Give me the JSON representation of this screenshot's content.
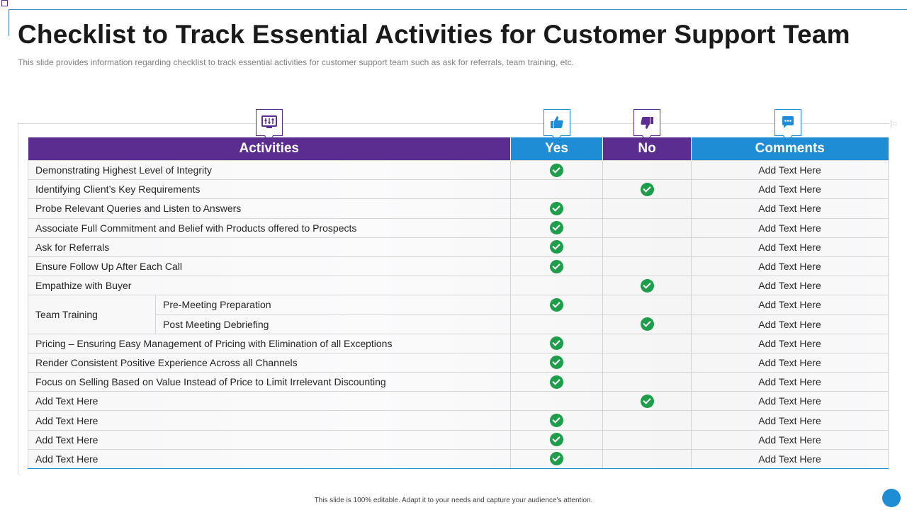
{
  "title": "Checklist to Track Essential Activities for Customer Support Team",
  "subtitle": "This slide provides  information  regarding  checklist to track essential activities for customer support team such as ask for referrals,  team training, etc.",
  "header_icons": {
    "activities": "monitor-equalizer-icon",
    "yes": "thumbs-up-icon",
    "no": "thumbs-down-icon",
    "comments": "chat-bubble-icon"
  },
  "table": {
    "headers": {
      "activities": "Activities",
      "yes": "Yes",
      "no": "No",
      "comments": "Comments"
    },
    "rows": [
      {
        "activity": "Demonstrating Highest Level of Integrity",
        "answer": "yes",
        "comment": "Add Text Here"
      },
      {
        "activity": "Identifying Client’s Key Requirements",
        "answer": "no",
        "comment": "Add Text Here"
      },
      {
        "activity": "Probe Relevant Queries and Listen to Answers",
        "answer": "yes",
        "comment": "Add Text Here"
      },
      {
        "activity": "Associate Full Commitment and Belief with Products offered to Prospects",
        "answer": "yes",
        "comment": "Add Text Here"
      },
      {
        "activity": "Ask for Referrals",
        "answer": "yes",
        "comment": "Add Text Here"
      },
      {
        "activity": "Ensure Follow Up After Each Call",
        "answer": "yes",
        "comment": "Add Text Here"
      },
      {
        "activity": "Empathize with Buyer",
        "answer": "no",
        "comment": "Add Text Here"
      },
      {
        "activity": "Team Training",
        "sub": "Pre-Meeting Preparation",
        "answer": "yes",
        "comment": "Add Text Here"
      },
      {
        "sub": "Post Meeting Debriefing",
        "answer": "no",
        "comment": "Add Text Here"
      },
      {
        "activity": "Pricing – Ensuring Easy Management of Pricing with Elimination of all Exceptions",
        "answer": "yes",
        "comment": "Add Text Here"
      },
      {
        "activity": "Render Consistent Positive Experience Across all Channels",
        "answer": "yes",
        "comment": "Add Text Here"
      },
      {
        "activity": "Focus on Selling Based on Value Instead of Price to Limit Irrelevant Discounting",
        "answer": "yes",
        "comment": "Add Text Here"
      },
      {
        "activity": "Add Text Here",
        "answer": "no",
        "comment": "Add Text Here"
      },
      {
        "activity": "Add Text Here",
        "answer": "yes",
        "comment": "Add Text Here"
      },
      {
        "activity": "Add Text Here",
        "answer": "yes",
        "comment": "Add Text Here"
      },
      {
        "activity": "Add Text Here",
        "answer": "yes",
        "comment": "Add Text Here"
      }
    ]
  },
  "footer": "This slide is 100% editable. Adapt it to your needs and capture your audience’s attention.",
  "colors": {
    "purple": "#5c2d91",
    "blue": "#1f8dd6",
    "check": "#1e9e4a"
  }
}
